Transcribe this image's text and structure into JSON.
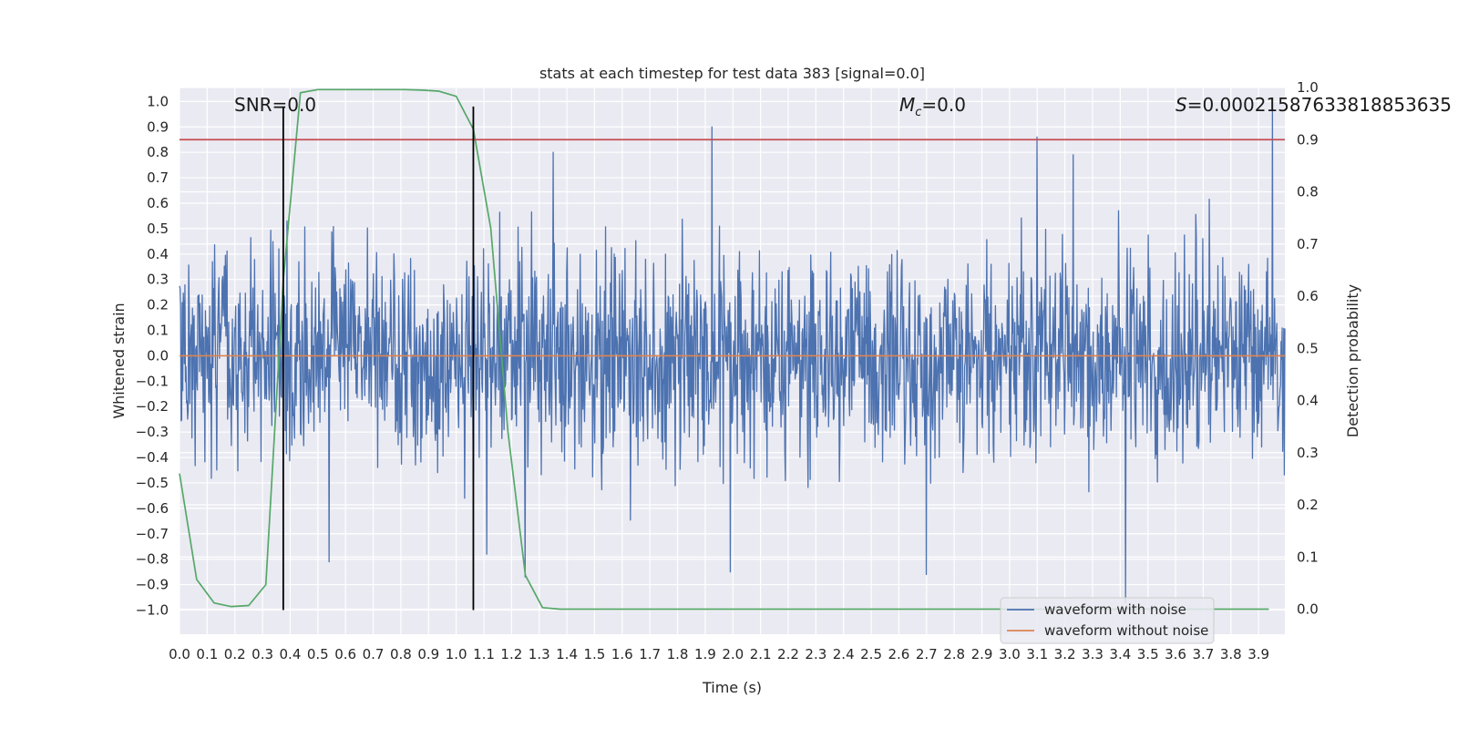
{
  "chart_data": {
    "type": "line",
    "title": "stats at each timestep for test data 383 [signal=0.0]",
    "xlabel": "Time (s)",
    "ylabel": "Whitened strain",
    "y2label": "Detection probability",
    "xlim": [
      0.0,
      3.995
    ],
    "ylim": [
      -1.095,
      1.055
    ],
    "y2lim": [
      -0.048,
      1.0
    ],
    "x_ticks": [
      0.0,
      0.1,
      0.2,
      0.3,
      0.4,
      0.5,
      0.6,
      0.7,
      0.8,
      0.9,
      1.0,
      1.1,
      1.2,
      1.3,
      1.4,
      1.5,
      1.6,
      1.7,
      1.8,
      1.9,
      2.0,
      2.1,
      2.2,
      2.3,
      2.4,
      2.5,
      2.6,
      2.7,
      2.8,
      2.9,
      3.0,
      3.1,
      3.2,
      3.3,
      3.4,
      3.5,
      3.6,
      3.7,
      3.8,
      3.9
    ],
    "x_tick_labels": [
      "0.0",
      "0.1",
      "0.2",
      "0.3",
      "0.4",
      "0.5",
      "0.6",
      "0.7",
      "0.8",
      "0.9",
      "1.0",
      "1.1",
      "1.2",
      "1.3",
      "1.4",
      "1.5",
      "1.6",
      "1.7",
      "1.8",
      "1.9",
      "2.0",
      "2.1",
      "2.2",
      "2.3",
      "2.4",
      "2.5",
      "2.6",
      "2.7",
      "2.8",
      "2.9",
      "3.0",
      "3.1",
      "3.2",
      "3.3",
      "3.4",
      "3.5",
      "3.6",
      "3.7",
      "3.8",
      "3.9"
    ],
    "y_ticks": [
      1.0,
      0.9,
      0.8,
      0.7,
      0.6,
      0.5,
      0.4,
      0.3,
      0.2,
      0.1,
      0.0,
      -0.1,
      -0.2,
      -0.3,
      -0.4,
      -0.5,
      -0.6,
      -0.7,
      -0.8,
      -0.9,
      -1.0
    ],
    "y_tick_labels": [
      "1.0",
      "0.9",
      "0.8",
      "0.7",
      "0.6",
      "0.5",
      "0.4",
      "0.3",
      "0.2",
      "0.1",
      "0.0",
      "−0.1",
      "−0.2",
      "−0.3",
      "−0.4",
      "−0.5",
      "−0.6",
      "−0.7",
      "−0.8",
      "−0.9",
      "−1.0"
    ],
    "y2_ticks": [
      1.0,
      0.9,
      0.8,
      0.7,
      0.6,
      0.5,
      0.4,
      0.3,
      0.2,
      0.1,
      0.0
    ],
    "y2_tick_labels": [
      "1.0",
      "0.9",
      "0.8",
      "0.7",
      "0.6",
      "0.5",
      "0.4",
      "0.3",
      "0.2",
      "0.1",
      "0.0"
    ],
    "grid": true,
    "background": "#eaeaf2",
    "legend_position": "lower-right",
    "annotations": {
      "snr": "SNR=0.0",
      "mc_symbol": "M",
      "mc_subscript": "c",
      "mc_value": "=0.0",
      "s_symbol": "S",
      "s_value": "=0.00021587633818853635"
    },
    "series": [
      {
        "name": "waveform with noise",
        "axis": "left",
        "color": "#4c72b0",
        "kind": "noise",
        "samples": 2048,
        "amplitude_std": 0.2,
        "peaks": [
          {
            "x": 1.925,
            "y": 0.9
          },
          {
            "x": 3.95,
            "y": 0.97
          },
          {
            "x": 3.1,
            "y": 0.86
          },
          {
            "x": 3.23,
            "y": 0.79
          },
          {
            "x": 1.35,
            "y": 0.8
          },
          {
            "x": 0.36,
            "y": 0.42
          },
          {
            "x": 3.42,
            "y": -0.97
          },
          {
            "x": 0.54,
            "y": -0.81
          },
          {
            "x": 1.99,
            "y": -0.85
          },
          {
            "x": 2.7,
            "y": -0.86
          },
          {
            "x": 1.25,
            "y": -0.87
          },
          {
            "x": 1.11,
            "y": -0.78
          }
        ]
      },
      {
        "name": "waveform without noise",
        "axis": "left",
        "color": "#dd8452",
        "x": [
          0.0,
          3.995
        ],
        "y": [
          0.0,
          0.0
        ]
      },
      {
        "name": "",
        "axis": "right",
        "color": "#55a868",
        "x": [
          0.0,
          0.062,
          0.125,
          0.187,
          0.25,
          0.312,
          0.375,
          0.437,
          0.5,
          0.562,
          0.625,
          0.687,
          0.75,
          0.812,
          0.875,
          0.937,
          1.0,
          1.062,
          1.125,
          1.187,
          1.25,
          1.312,
          1.375,
          1.437,
          1.5,
          1.562,
          1.625,
          1.687,
          1.75,
          1.812,
          1.875,
          1.937,
          2.0,
          2.062,
          2.125,
          2.187,
          2.25,
          2.312,
          2.375,
          2.437,
          2.5,
          2.562,
          2.625,
          2.687,
          2.75,
          2.812,
          2.875,
          2.937,
          3.0,
          3.062,
          3.125,
          3.187,
          3.25,
          3.312,
          3.375,
          3.437,
          3.5,
          3.562,
          3.625,
          3.687,
          3.75,
          3.812,
          3.875,
          3.937
        ],
        "y": [
          0.26,
          0.057,
          0.012,
          0.005,
          0.007,
          0.047,
          0.63,
          0.99,
          0.996,
          0.996,
          0.996,
          0.996,
          0.996,
          0.996,
          0.995,
          0.993,
          0.983,
          0.92,
          0.73,
          0.34,
          0.065,
          0.003,
          0.0,
          0.0,
          0.0,
          0.0,
          0.0,
          0.0,
          0.0,
          0.0,
          0.0,
          0.0,
          0.0,
          0.0,
          0.0,
          0.0,
          0.0,
          0.0,
          0.0,
          0.0,
          0.0,
          0.0,
          0.0,
          0.0,
          0.0,
          0.0,
          0.0,
          0.0,
          0.0,
          0.0,
          0.0,
          0.0,
          0.0,
          0.0,
          0.0,
          0.0,
          0.0,
          0.0,
          0.0,
          0.0,
          0.0,
          0.0,
          0.0,
          0.0
        ]
      },
      {
        "name": "",
        "axis": "right",
        "color": "#c44e52",
        "x": [
          0.0,
          3.995
        ],
        "y": [
          0.9,
          0.9
        ]
      }
    ],
    "vertical_lines": [
      {
        "x": 0.375,
        "y_range": [
          -1.0,
          0.98
        ],
        "color": "#000000"
      },
      {
        "x": 1.062,
        "y_range": [
          -1.0,
          0.98
        ],
        "color": "#000000"
      }
    ]
  }
}
